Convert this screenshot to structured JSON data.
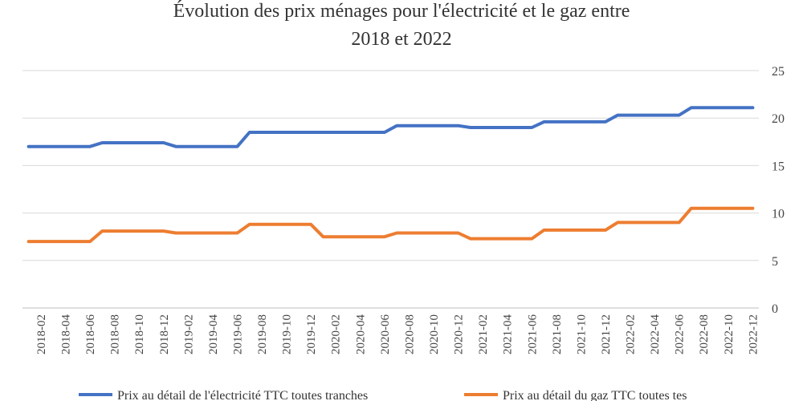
{
  "chart_data": {
    "type": "line",
    "title_lines": [
      "Évolution des prix ménages pour l'électricité et le gaz entre",
      "2018 et 2022"
    ],
    "xlabel": "",
    "ylabel": "",
    "ylim": [
      0,
      25
    ],
    "yticks": [
      0,
      5,
      10,
      15,
      20,
      25
    ],
    "y_axis_side": "right",
    "grid": true,
    "legend_position": "bottom",
    "categories": [
      "2018-01",
      "2018-02",
      "2018-03",
      "2018-04",
      "2018-05",
      "2018-06",
      "2018-07",
      "2018-08",
      "2018-09",
      "2018-10",
      "2018-11",
      "2018-12",
      "2019-01",
      "2019-02",
      "2019-03",
      "2019-04",
      "2019-05",
      "2019-06",
      "2019-07",
      "2019-08",
      "2019-09",
      "2019-10",
      "2019-11",
      "2019-12",
      "2020-01",
      "2020-02",
      "2020-03",
      "2020-04",
      "2020-05",
      "2020-06",
      "2020-07",
      "2020-08",
      "2020-09",
      "2020-10",
      "2020-11",
      "2020-12",
      "2021-01",
      "2021-02",
      "2021-03",
      "2021-04",
      "2021-05",
      "2021-06",
      "2021-07",
      "2021-08",
      "2021-09",
      "2021-10",
      "2021-11",
      "2021-12",
      "2022-01",
      "2022-02",
      "2022-03",
      "2022-04",
      "2022-05",
      "2022-06",
      "2022-07",
      "2022-08",
      "2022-09",
      "2022-10",
      "2022-11",
      "2022-12"
    ],
    "tick_labels": [
      "2018-02",
      "2018-04",
      "2018-06",
      "2018-08",
      "2018-10",
      "2018-12",
      "2019-02",
      "2019-04",
      "2019-06",
      "2019-08",
      "2019-10",
      "2019-12",
      "2020-02",
      "2020-04",
      "2020-06",
      "2020-08",
      "2020-10",
      "2020-12",
      "2021-02",
      "2021-04",
      "2021-06",
      "2021-08",
      "2021-10",
      "2021-12",
      "2022-02",
      "2022-04",
      "2022-06",
      "2022-08",
      "2022-10",
      "2022-12"
    ],
    "series": [
      {
        "name": "Prix au détail de l'électricité TTC toutes tranches",
        "color": "#4472c4",
        "values": [
          17.0,
          17.0,
          17.0,
          17.0,
          17.0,
          17.0,
          17.4,
          17.4,
          17.4,
          17.4,
          17.4,
          17.4,
          17.0,
          17.0,
          17.0,
          17.0,
          17.0,
          17.0,
          18.5,
          18.5,
          18.5,
          18.5,
          18.5,
          18.5,
          18.5,
          18.5,
          18.5,
          18.5,
          18.5,
          18.5,
          19.2,
          19.2,
          19.2,
          19.2,
          19.2,
          19.2,
          19.0,
          19.0,
          19.0,
          19.0,
          19.0,
          19.0,
          19.6,
          19.6,
          19.6,
          19.6,
          19.6,
          19.6,
          20.3,
          20.3,
          20.3,
          20.3,
          20.3,
          20.3,
          21.1,
          21.1,
          21.1,
          21.1,
          21.1,
          21.1
        ]
      },
      {
        "name": "Prix au détail du gaz TTC toutes tes",
        "color": "#ed7d31",
        "values": [
          7.0,
          7.0,
          7.0,
          7.0,
          7.0,
          7.0,
          8.1,
          8.1,
          8.1,
          8.1,
          8.1,
          8.1,
          7.9,
          7.9,
          7.9,
          7.9,
          7.9,
          7.9,
          8.8,
          8.8,
          8.8,
          8.8,
          8.8,
          8.8,
          7.5,
          7.5,
          7.5,
          7.5,
          7.5,
          7.5,
          7.9,
          7.9,
          7.9,
          7.9,
          7.9,
          7.9,
          7.3,
          7.3,
          7.3,
          7.3,
          7.3,
          7.3,
          8.2,
          8.2,
          8.2,
          8.2,
          8.2,
          8.2,
          9.0,
          9.0,
          9.0,
          9.0,
          9.0,
          9.0,
          10.5,
          10.5,
          10.5,
          10.5,
          10.5,
          10.5
        ]
      }
    ]
  }
}
